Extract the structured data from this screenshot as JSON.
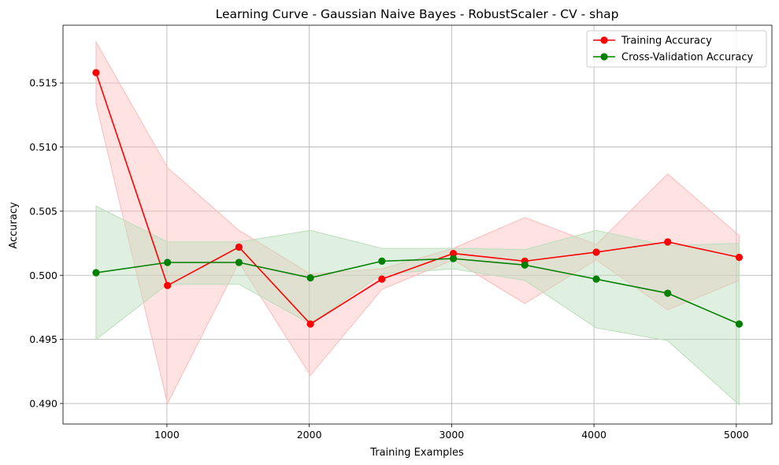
{
  "chart_data": {
    "type": "line",
    "title": "Learning Curve - Gaussian Naive Bayes - RobustScaler - CV - shap",
    "xlabel": "Training Examples",
    "ylabel": "Accuracy",
    "xlim": [
      270,
      5250
    ],
    "ylim": [
      0.4884,
      0.5195
    ],
    "xticks": [
      1000,
      2000,
      3000,
      4000,
      5000
    ],
    "yticks": [
      0.49,
      0.495,
      0.5,
      0.505,
      0.51,
      0.515
    ],
    "ytick_labels": [
      "0.490",
      "0.495",
      "0.500",
      "0.505",
      "0.510",
      "0.515"
    ],
    "grid": true,
    "legend_position": "top-right",
    "x": [
      502,
      1004,
      1506,
      2008,
      2510,
      3012,
      3514,
      4016,
      4518,
      5020
    ],
    "series": [
      {
        "name": "Training Accuracy",
        "color": "#ff0000",
        "band_color": "#ffbbbb",
        "values": [
          0.5158,
          0.4992,
          0.5022,
          0.4962,
          0.4997,
          0.5017,
          0.5011,
          0.5018,
          0.5026,
          0.5014
        ],
        "band_low": [
          0.5134,
          0.49,
          0.501,
          0.4922,
          0.4989,
          0.5012,
          0.4978,
          0.5012,
          0.4973,
          0.4996
        ],
        "band_high": [
          0.5182,
          0.5084,
          0.5035,
          0.5001,
          0.5005,
          0.5021,
          0.5045,
          0.5024,
          0.5079,
          0.5031
        ]
      },
      {
        "name": "Cross-Validation Accuracy",
        "color": "#008000",
        "band_color": "#bbddbb",
        "values": [
          0.5002,
          0.501,
          0.501,
          0.4998,
          0.5011,
          0.5013,
          0.5008,
          0.4997,
          0.4986,
          0.4962
        ],
        "band_low": [
          0.495,
          0.4993,
          0.4993,
          0.4962,
          0.5001,
          0.5005,
          0.4996,
          0.4959,
          0.4949,
          0.4899
        ],
        "band_high": [
          0.5054,
          0.5026,
          0.5026,
          0.5035,
          0.5021,
          0.5021,
          0.502,
          0.5035,
          0.5023,
          0.5025
        ]
      }
    ]
  }
}
